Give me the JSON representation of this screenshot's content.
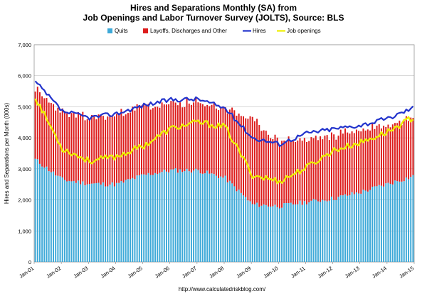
{
  "chart_data": {
    "type": "bar",
    "title": "Hires and Separations Monthly (SA) from",
    "subtitle": "Job Openings and Labor Turnover Survey (JOLTS), Source: BLS",
    "ylabel": "Hires and Separations per Month (000s)",
    "xlabel": "",
    "ylim": [
      0,
      7000
    ],
    "yticks": [
      0,
      1000,
      2000,
      3000,
      4000,
      5000,
      6000,
      7000
    ],
    "ytick_labels": [
      "0",
      "1,000",
      "2,000",
      "3,000",
      "4,000",
      "5,000",
      "6,000",
      "7,000"
    ],
    "xticks": [
      "Jan-01",
      "Jan-02",
      "Jan-03",
      "Jan-04",
      "Jan-05",
      "Jan-06",
      "Jan-07",
      "Jan-08",
      "Jan-09",
      "Jan-10",
      "Jan-11",
      "Jan-12",
      "Jan-13",
      "Jan-14",
      "Jan-15"
    ],
    "grid": true,
    "legend_position": "top",
    "source": "http://www.calculatedriskblog.com/",
    "series": [
      {
        "name": "Quits",
        "kind": "stacked-bar",
        "color": "#3da9d8",
        "yearly_values": [
          3300,
          2650,
          2520,
          2500,
          2800,
          2950,
          2950,
          2700,
          1850,
          1800,
          1930,
          2050,
          2250,
          2520
        ],
        "end_value": 2780
      },
      {
        "name": "Layoffs, Discharges and Other",
        "kind": "stacked-bar",
        "color": "#dd1c1c",
        "yearly_values": [
          2250,
          2150,
          2130,
          2230,
          2200,
          2130,
          2180,
          2250,
          2700,
          2100,
          2000,
          2050,
          2000,
          1880
        ],
        "end_value": 1950
      },
      {
        "name": "Hires",
        "kind": "line",
        "color": "#2233cc",
        "yearly_values": [
          5800,
          4850,
          4650,
          4780,
          5050,
          5230,
          5250,
          4950,
          4000,
          3800,
          4150,
          4290,
          4410,
          4620
        ],
        "end_value": 5000
      },
      {
        "name": "Job openings",
        "kind": "line",
        "color": "#eeee00",
        "yearly_values": [
          5300,
          3650,
          3250,
          3400,
          3750,
          4300,
          4500,
          4350,
          2800,
          2600,
          3050,
          3600,
          3850,
          4200
        ],
        "end_value": 4700
      }
    ]
  }
}
